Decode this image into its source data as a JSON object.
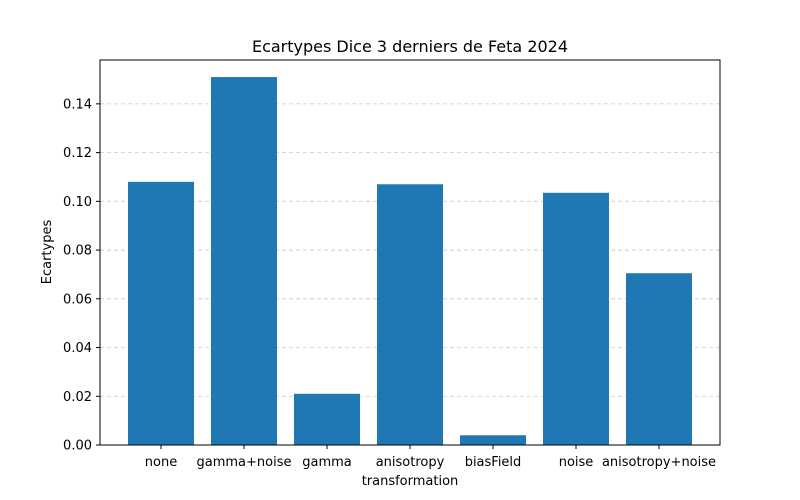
{
  "chart_data": {
    "type": "bar",
    "title": "Ecartypes Dice 3 derniers de Feta 2024",
    "xlabel": "transformation",
    "ylabel": "Ecartypes",
    "categories": [
      "none",
      "gamma+noise",
      "gamma",
      "anisotropy",
      "biasField",
      "noise",
      "anisotropy+noise"
    ],
    "values": [
      0.108,
      0.151,
      0.021,
      0.107,
      0.004,
      0.1035,
      0.0705
    ],
    "ylim": [
      0,
      0.158
    ],
    "yticks": [
      0.0,
      0.02,
      0.04,
      0.06,
      0.08,
      0.1,
      0.12,
      0.14
    ],
    "ytick_labels": [
      "0.00",
      "0.02",
      "0.04",
      "0.06",
      "0.08",
      "0.10",
      "0.12",
      "0.14"
    ],
    "grid": "y-dashed",
    "bar_color": "#1f77b4",
    "grid_color": "#c8c8c8"
  }
}
